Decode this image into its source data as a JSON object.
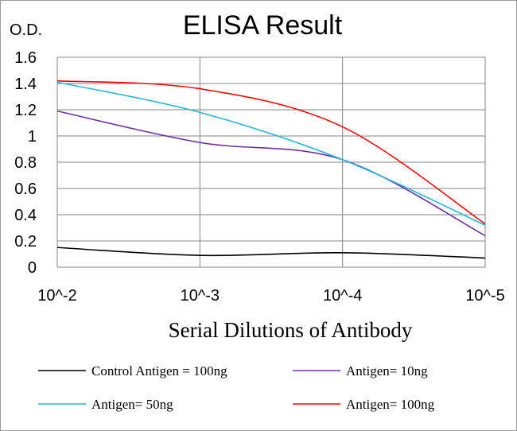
{
  "chart_data": {
    "type": "line",
    "title": "ELISA Result",
    "ylabel": "O.D.",
    "xlabel": "Serial Dilutions of Antibody",
    "x_ticks": [
      "10^-2",
      "10^-3",
      "10^-4",
      "10^-5"
    ],
    "y_ticks": [
      "0",
      "0.2",
      "0.4",
      "0.6",
      "0.8",
      "1",
      "1.2",
      "1.4",
      "1.6"
    ],
    "ylim": [
      0,
      1.6
    ],
    "grid": "vertical and horizontal",
    "legend_position": "bottom",
    "series": [
      {
        "name": "Control Antigen = 100ng",
        "color": "#000000",
        "values": [
          0.15,
          0.09,
          0.11,
          0.07
        ]
      },
      {
        "name": "Antigen= 10ng",
        "color": "#7030a0",
        "values": [
          1.19,
          0.95,
          0.82,
          0.24
        ]
      },
      {
        "name": "Antigen= 50ng",
        "color": "#1fb8dc",
        "values": [
          1.41,
          1.18,
          0.82,
          0.32
        ]
      },
      {
        "name": "Antigen= 100ng",
        "color": "#ff0000",
        "values": [
          1.42,
          1.36,
          1.07,
          0.33
        ]
      }
    ]
  }
}
